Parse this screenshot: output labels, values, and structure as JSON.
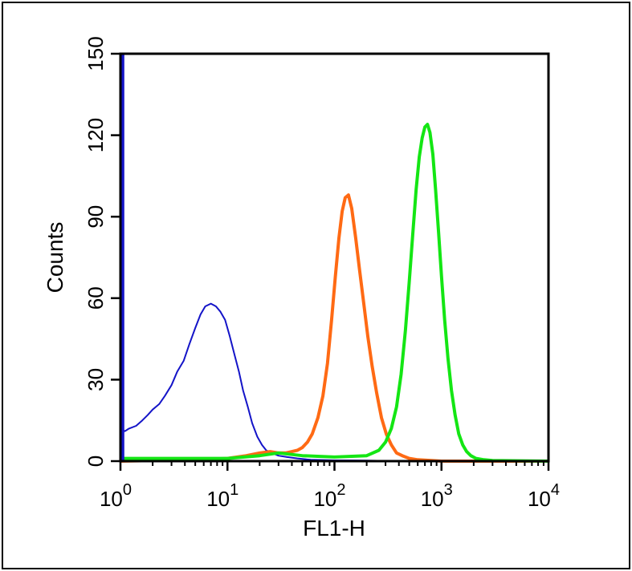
{
  "chart_data": {
    "type": "line",
    "title": "",
    "xlabel": "FL1-H",
    "ylabel": "Counts",
    "xscale": "log",
    "xlim": [
      1,
      10000
    ],
    "ylim": [
      0,
      150
    ],
    "grid": false,
    "legend": "none",
    "x_ticks": [
      {
        "value": 1,
        "base": "10",
        "exp": "0"
      },
      {
        "value": 10,
        "base": "10",
        "exp": "1"
      },
      {
        "value": 100,
        "base": "10",
        "exp": "2"
      },
      {
        "value": 1000,
        "base": "10",
        "exp": "3"
      },
      {
        "value": 10000,
        "base": "10",
        "exp": "4"
      }
    ],
    "y_ticks": [
      {
        "value": 0,
        "label": "0"
      },
      {
        "value": 30,
        "label": "30"
      },
      {
        "value": 60,
        "label": "60"
      },
      {
        "value": 90,
        "label": "90"
      },
      {
        "value": 120,
        "label": "120"
      },
      {
        "value": 150,
        "label": "150"
      }
    ],
    "series": [
      {
        "color": "#1414c8",
        "stroke": 2,
        "x": [
          1.0,
          1.1,
          1.2,
          1.4,
          1.6,
          1.8,
          2.0,
          2.3,
          2.6,
          3.0,
          3.4,
          3.9,
          4.4,
          5.0,
          5.6,
          6.2,
          7.0,
          7.8,
          8.6,
          9.5,
          10.5,
          11.5,
          12.8,
          14.0,
          15.5,
          17.0,
          19.0,
          21.0,
          23.0,
          26.0,
          30.0,
          36.0,
          45.0,
          60.0,
          100.0,
          200.0,
          400.0
        ],
        "y": [
          12,
          11,
          12,
          13,
          15,
          17,
          19,
          21,
          24,
          28,
          33,
          37,
          43,
          49,
          54,
          57,
          58,
          57,
          55,
          52,
          46,
          40,
          33,
          26,
          20,
          14,
          9,
          6,
          4,
          3,
          2,
          1.5,
          1,
          0.5,
          0.3,
          0.2,
          0
        ]
      },
      {
        "color": "#ff6a14",
        "stroke": 4,
        "x": [
          1.0,
          5.0,
          10.0,
          15.0,
          20.0,
          25.0,
          30.0,
          35.0,
          40.0,
          45.0,
          50.0,
          56.0,
          62.0,
          70.0,
          78.0,
          86.0,
          94.0,
          102.0,
          110.0,
          118.0,
          126.0,
          135.0,
          145.0,
          158.0,
          172.0,
          188.0,
          205.0,
          225.0,
          248.0,
          275.0,
          305.0,
          340.0,
          380.0,
          430.0,
          500.0,
          600.0,
          1000.0,
          10000.0
        ],
        "y": [
          0,
          0.5,
          1,
          2,
          3,
          3.5,
          3,
          3,
          3.5,
          4,
          5,
          7,
          10,
          16,
          24,
          36,
          52,
          68,
          82,
          92,
          97,
          98,
          93,
          82,
          70,
          58,
          46,
          35,
          25,
          16,
          10,
          6,
          3,
          2,
          1,
          0.5,
          0,
          0
        ]
      },
      {
        "color": "#14e614",
        "stroke": 4,
        "x": [
          1.0,
          10.0,
          20.0,
          30.0,
          50.0,
          100.0,
          200.0,
          260.0,
          300.0,
          340.0,
          380.0,
          420.0,
          460.0,
          500.0,
          540.0,
          580.0,
          620.0,
          660.0,
          700.0,
          740.0,
          780.0,
          830.0,
          880.0,
          940.0,
          1000.0,
          1070.0,
          1150.0,
          1240.0,
          1340.0,
          1450.0,
          1580.0,
          1720.0,
          1880.0,
          2100.0,
          2500.0,
          3000.0,
          10000.0
        ],
        "y": [
          1,
          1,
          2,
          3,
          2,
          1.5,
          2,
          4,
          7,
          12,
          20,
          32,
          48,
          66,
          84,
          100,
          112,
          119,
          123,
          124,
          121,
          113,
          100,
          84,
          68,
          52,
          38,
          26,
          17,
          10,
          6,
          3.5,
          2,
          1,
          0.5,
          0.2,
          0
        ]
      },
      {
        "color": "#1414c8",
        "stroke": 4,
        "x": [
          1.05,
          1.05
        ],
        "y": [
          0,
          150
        ]
      }
    ]
  }
}
